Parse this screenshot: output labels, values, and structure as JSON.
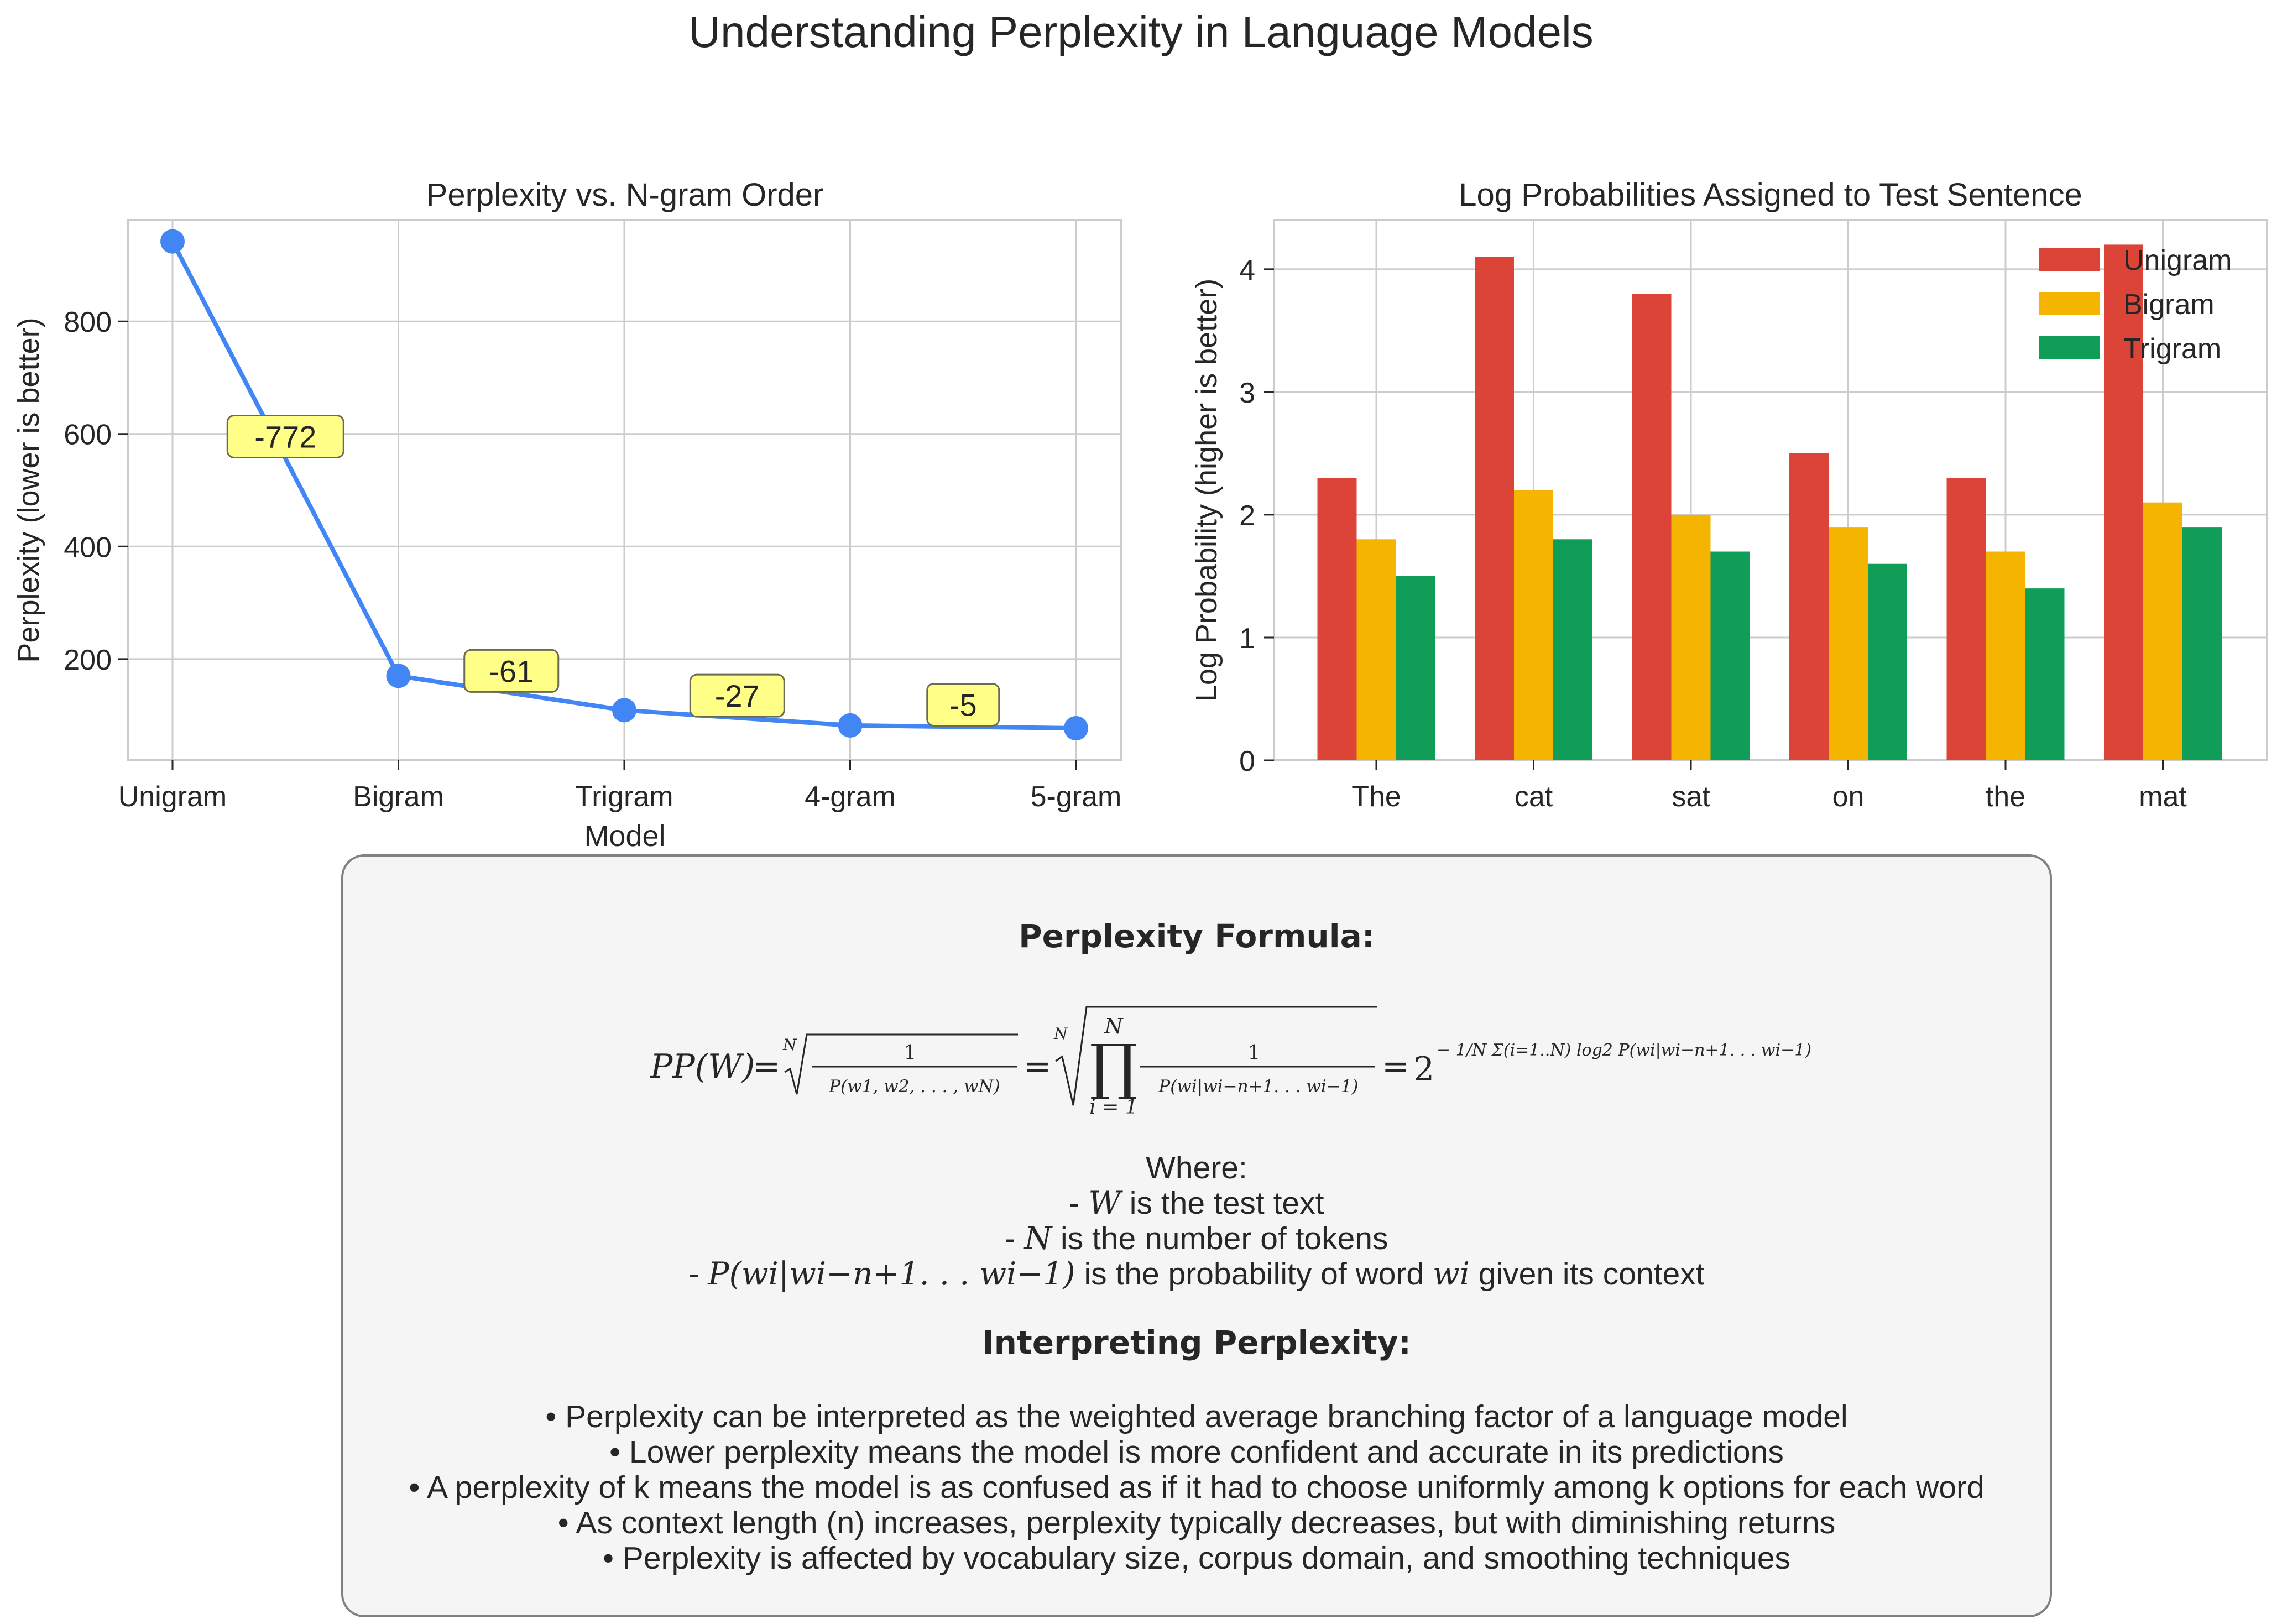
{
  "title": "Understanding Perplexity in Language Models",
  "chart_data": [
    {
      "type": "line",
      "title": "Perplexity vs. N-gram Order",
      "xlabel": "Model",
      "ylabel": "Perplexity (lower is better)",
      "categories": [
        "Unigram",
        "Bigram",
        "Trigram",
        "4-gram",
        "5-gram"
      ],
      "values": [
        942,
        170,
        109,
        82,
        77
      ],
      "annotations": [
        "-772",
        "-61",
        "-27",
        "-5"
      ],
      "ylim": [
        20,
        980
      ],
      "yticks": [
        200,
        400,
        600,
        800
      ],
      "grid": true,
      "color": "#4285f4",
      "annotation_color": "#ffff88"
    },
    {
      "type": "bar",
      "title": "Log Probabilities Assigned to Test Sentence",
      "xlabel": "",
      "ylabel": "Log Probability (higher is better)",
      "categories": [
        "The",
        "cat",
        "sat",
        "on",
        "the",
        "mat"
      ],
      "series": [
        {
          "name": "Unigram",
          "values": [
            2.3,
            4.1,
            3.8,
            2.5,
            2.3,
            4.2
          ],
          "color": "#db4437"
        },
        {
          "name": "Bigram",
          "values": [
            1.8,
            2.2,
            2.0,
            1.9,
            1.7,
            2.1
          ],
          "color": "#f4b400"
        },
        {
          "name": "Trigram",
          "values": [
            1.5,
            1.8,
            1.7,
            1.6,
            1.4,
            1.9
          ],
          "color": "#0f9d58"
        }
      ],
      "ylim": [
        0,
        4.4
      ],
      "yticks": [
        0,
        1,
        2,
        3,
        4
      ],
      "grid": true,
      "legend": "top-right"
    }
  ],
  "formula_box": {
    "heading": "Perplexity Formula:",
    "formula": {
      "lhs": "PP(W)",
      "eq": "=",
      "root_index": "N",
      "one": "1",
      "first_denominator": "P(w1, w2, . . . , wN)",
      "prod_upper": "N",
      "prod_symbol": "∏",
      "prod_lower": "i = 1",
      "second_denominator": "P(wi|wi−n+1. . . wi−1)",
      "base": "2",
      "exponent": "− 1/N Σ(i=1..N) log2 P(wi|wi−n+1. . . wi−1)"
    },
    "where_label": "Where:",
    "where_items": [
      {
        "prefix": "- ",
        "math": "W",
        "text": " is the test text"
      },
      {
        "prefix": "- ",
        "math": "N",
        "text": " is the number of tokens"
      },
      {
        "prefix": "- ",
        "math": "P(wi|wi−n+1. . . wi−1)",
        "text": " is the probability of word ",
        "math2": "wi",
        "text2": " given its context"
      }
    ],
    "interpreting_heading": "Interpreting Perplexity:",
    "bullets": [
      "• Perplexity can be interpreted as the weighted average branching factor of a language model",
      "• Lower perplexity means the model is more confident and accurate in its predictions",
      "• A perplexity of k means the model is as confused as if it had to choose uniformly among k options for each word",
      "• As context length (n) increases, perplexity typically decreases, but with diminishing returns",
      "• Perplexity is affected by vocabulary size, corpus domain, and smoothing techniques"
    ]
  }
}
